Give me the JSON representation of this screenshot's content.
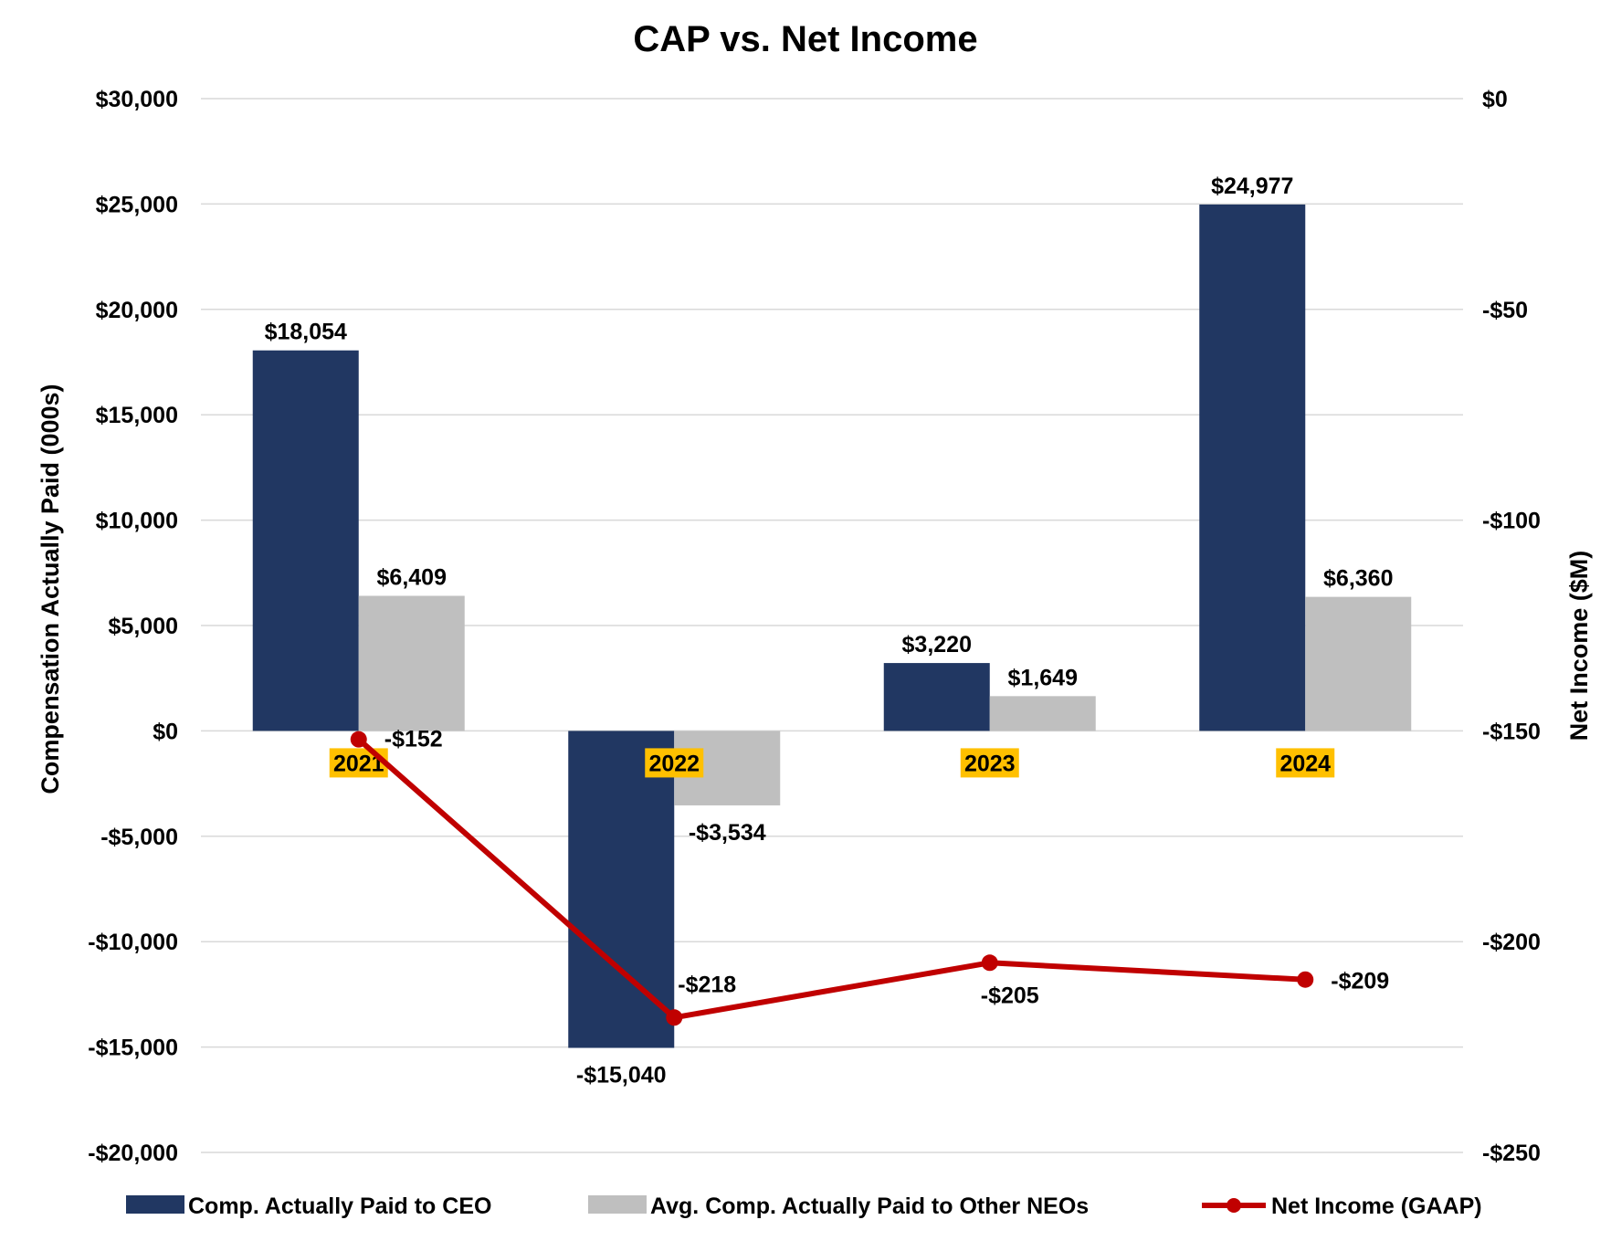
{
  "chart_data": {
    "type": "bar",
    "title": "CAP vs. Net Income",
    "categories": [
      "2021",
      "2022",
      "2023",
      "2024"
    ],
    "ylabel": "Compensation Actually Paid (000s)",
    "y2label": "Net Income ($M)",
    "ylim": [
      -20000,
      30000
    ],
    "y2lim": [
      -250,
      0
    ],
    "y_ticks": [
      30000,
      25000,
      20000,
      15000,
      10000,
      5000,
      0,
      -5000,
      -10000,
      -15000,
      -20000
    ],
    "y_tick_labels": [
      "$30,000",
      "$25,000",
      "$20,000",
      "$15,000",
      "$10,000",
      "$5,000",
      "$0",
      "-$5,000",
      "-$10,000",
      "-$15,000",
      "-$20,000"
    ],
    "y2_ticks": [
      0,
      -50,
      -100,
      -150,
      -200,
      -250
    ],
    "y2_tick_labels": [
      "$0",
      "-$50",
      "-$100",
      "-$150",
      "-$200",
      "-$250"
    ],
    "series": [
      {
        "name": "Comp. Actually Paid to CEO",
        "kind": "bar",
        "axis": "left",
        "color": "#213762",
        "values": [
          18054,
          -15040,
          3220,
          24977
        ],
        "labels": [
          "$18,054",
          "-$15,040",
          "$3,220",
          "$24,977"
        ]
      },
      {
        "name": "Avg. Comp. Actually Paid to Other NEOs",
        "kind": "bar",
        "axis": "left",
        "color": "#BFBFBF",
        "values": [
          6409,
          -3534,
          1649,
          6360
        ],
        "labels": [
          "$6,409",
          "-$3,534",
          "$1,649",
          "$6,360"
        ]
      },
      {
        "name": "Net Income (GAAP)",
        "kind": "line",
        "axis": "right",
        "color": "#C00000",
        "values": [
          -152,
          -218,
          -205,
          -209
        ],
        "labels": [
          "-$152",
          "-$218",
          "-$205",
          "-$209"
        ]
      }
    ],
    "category_label_highlight": "#FFC000",
    "grid": true,
    "legend": "bottom"
  }
}
